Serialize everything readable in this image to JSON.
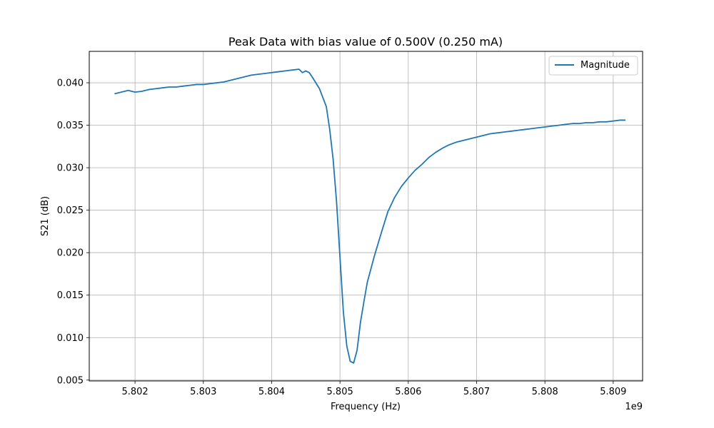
{
  "chart_data": {
    "type": "line",
    "title": "Peak Data with bias value of 0.500V (0.250 mA)",
    "xlabel": "Frequency (Hz)",
    "ylabel": "S21 (dB)",
    "x_offset_label": "1e9",
    "xlim": [
      5.80133,
      5.80943
    ],
    "ylim": [
      0.0049,
      0.0437
    ],
    "xticks": [
      5.802,
      5.803,
      5.804,
      5.805,
      5.806,
      5.807,
      5.808,
      5.809
    ],
    "xtick_labels": [
      "5.802",
      "5.803",
      "5.804",
      "5.805",
      "5.806",
      "5.807",
      "5.808",
      "5.809"
    ],
    "yticks": [
      0.005,
      0.01,
      0.015,
      0.02,
      0.025,
      0.03,
      0.035,
      0.04
    ],
    "ytick_labels": [
      "0.005",
      "0.010",
      "0.015",
      "0.020",
      "0.025",
      "0.030",
      "0.035",
      "0.040"
    ],
    "grid": true,
    "legend_position": "top-right",
    "series": [
      {
        "name": "Magnitude",
        "color": "#1f77b4",
        "x": [
          5.8017,
          5.8018,
          5.8019,
          5.802,
          5.8021,
          5.8022,
          5.8023,
          5.8024,
          5.8025,
          5.8026,
          5.8027,
          5.8028,
          5.8029,
          5.803,
          5.8031,
          5.8032,
          5.8033,
          5.8034,
          5.8035,
          5.8036,
          5.8037,
          5.8038,
          5.8039,
          5.804,
          5.8041,
          5.8042,
          5.8043,
          5.8044,
          5.8045,
          5.80455,
          5.8046,
          5.8047,
          5.8048,
          5.80485,
          5.8049,
          5.80495,
          5.805,
          5.80505,
          5.8051,
          5.80515,
          5.8052,
          5.80525,
          5.8053,
          5.80535,
          5.8054,
          5.80445,
          5.8055,
          5.8056,
          5.8057,
          5.8058,
          5.8059,
          5.806,
          5.8061,
          5.8062,
          5.8063,
          5.8064,
          5.8065,
          5.8066,
          5.8067,
          5.8068,
          5.8069,
          5.807,
          5.8071,
          5.8072,
          5.8073,
          5.8074,
          5.8075,
          5.8076,
          5.8077,
          5.8078,
          5.8079,
          5.808,
          5.8081,
          5.8082,
          5.8083,
          5.8084,
          5.8085,
          5.8086,
          5.8087,
          5.8088,
          5.8089,
          5.809,
          5.8091,
          5.80918
        ],
        "y": [
          0.0387,
          0.0389,
          0.0391,
          0.0389,
          0.039,
          0.0392,
          0.0393,
          0.0394,
          0.0395,
          0.0395,
          0.0396,
          0.0397,
          0.0398,
          0.0398,
          0.0399,
          0.04,
          0.0401,
          0.0403,
          0.0405,
          0.0407,
          0.0409,
          0.041,
          0.0411,
          0.0412,
          0.0413,
          0.0414,
          0.0415,
          0.0416,
          0.0414,
          0.0412,
          0.0406,
          0.0393,
          0.0372,
          0.0345,
          0.031,
          0.026,
          0.0195,
          0.013,
          0.009,
          0.0072,
          0.007,
          0.0085,
          0.0118,
          0.0142,
          0.0165,
          0.0412,
          0.0195,
          0.0222,
          0.0248,
          0.0265,
          0.0278,
          0.0288,
          0.0297,
          0.0304,
          0.0312,
          0.0318,
          0.0323,
          0.0327,
          0.033,
          0.0332,
          0.0334,
          0.0336,
          0.0338,
          0.034,
          0.0341,
          0.0342,
          0.0343,
          0.0344,
          0.0345,
          0.0346,
          0.0347,
          0.0348,
          0.0349,
          0.035,
          0.0351,
          0.0352,
          0.0352,
          0.0353,
          0.0353,
          0.0354,
          0.0354,
          0.0355,
          0.0356,
          0.0356
        ]
      }
    ]
  }
}
